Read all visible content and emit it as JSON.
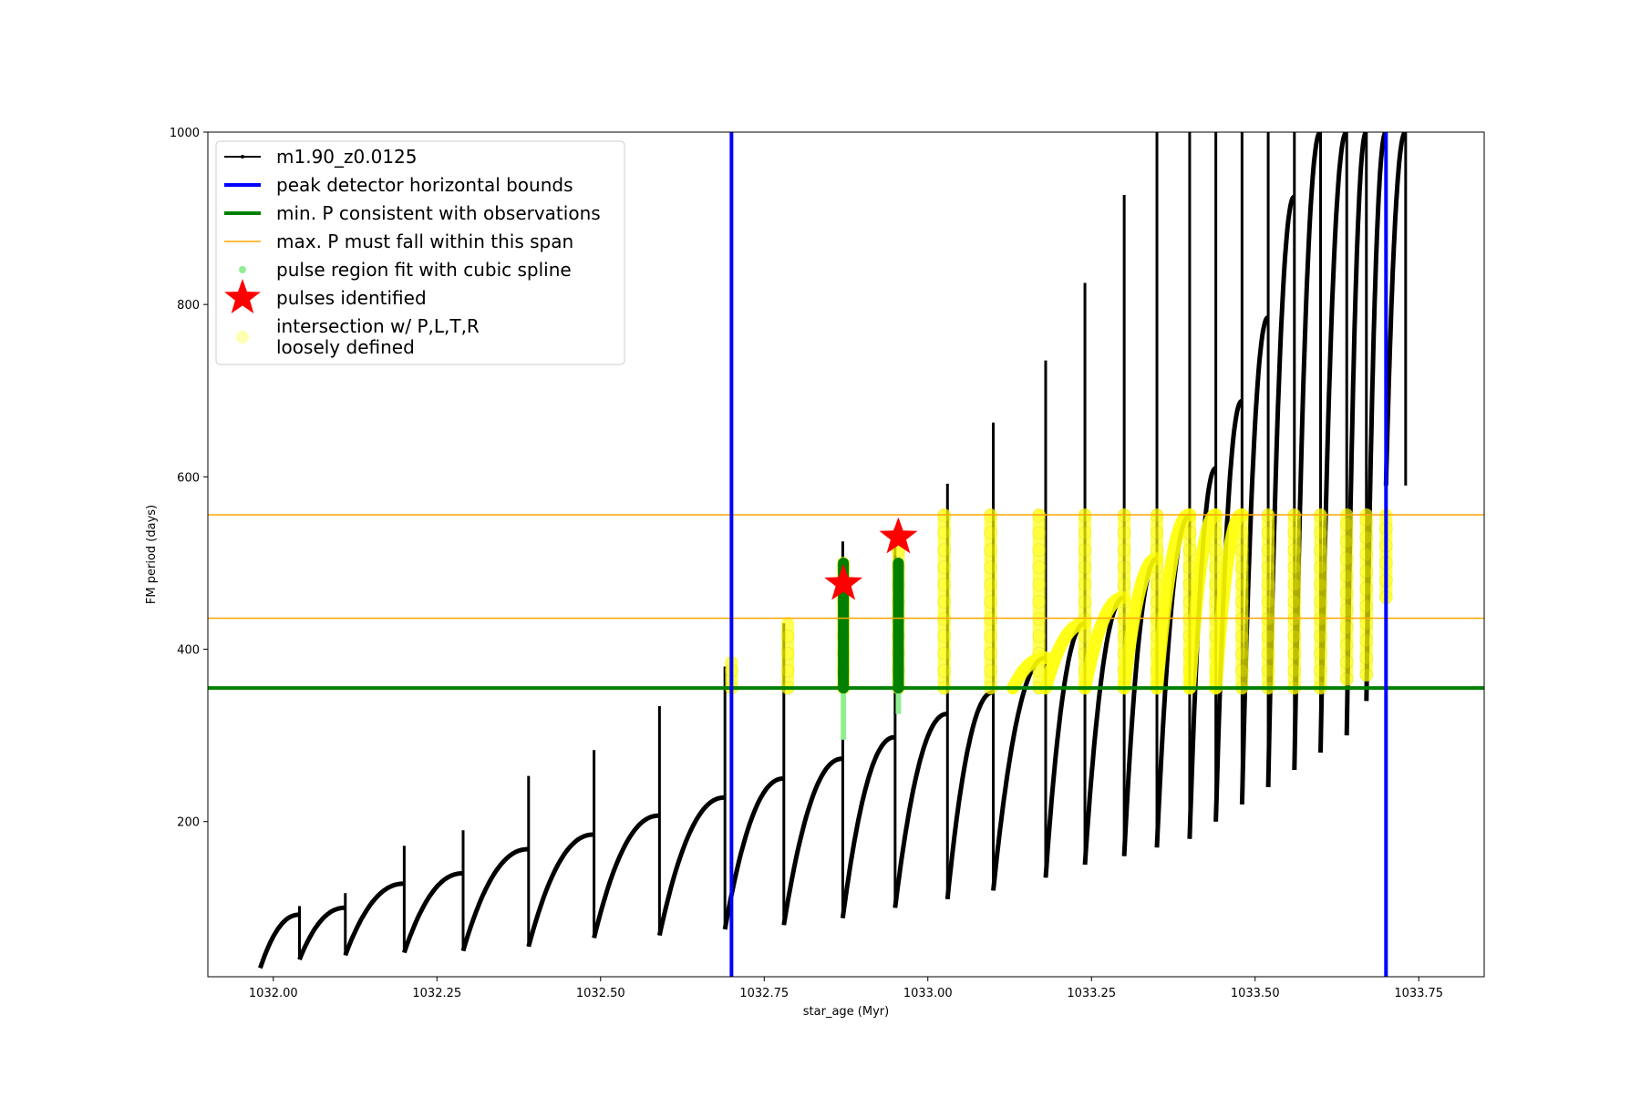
{
  "chart_data": {
    "type": "line",
    "title": "",
    "xlabel": "star_age (Myr)",
    "ylabel": "FM period (days)",
    "xlim": [
      1031.9,
      1033.85
    ],
    "ylim": [
      20,
      1000
    ],
    "xticks": [
      1032.0,
      1032.25,
      1032.5,
      1032.75,
      1033.0,
      1033.25,
      1033.5,
      1033.75
    ],
    "xtick_labels": [
      "1032.00",
      "1032.25",
      "1032.50",
      "1032.75",
      "1033.00",
      "1033.25",
      "1033.50",
      "1033.75"
    ],
    "yticks": [
      200,
      400,
      600,
      800,
      1000
    ],
    "ytick_labels": [
      "200",
      "400",
      "600",
      "800",
      "1000"
    ],
    "grid": false,
    "legend_position": "top-left",
    "colors": {
      "track": "#000000",
      "bounds": "#0000ff",
      "min_p": "#008000",
      "max_p": "#ffa500",
      "spline": "#90ee90",
      "spline_fit": "#008000",
      "pulse": "#ff0000",
      "intersection": "#ffff00"
    },
    "legend": [
      {
        "key": "track",
        "label": "m1.90_z0.0125"
      },
      {
        "key": "bounds",
        "label": "peak detector horizontal bounds"
      },
      {
        "key": "min_p",
        "label": "min. P consistent with observations"
      },
      {
        "key": "max_p",
        "label": "max. P must fall within this span"
      },
      {
        "key": "spline",
        "label": "pulse region fit with cubic spline"
      },
      {
        "key": "pulse",
        "label": "pulses identified"
      },
      {
        "key": "intersection",
        "label_lines": [
          "intersection w/ P,L,T,R",
          "loosely defined"
        ]
      }
    ],
    "series": [
      {
        "name": "m1.90_z0.0125",
        "pulses": [
          {
            "start": 1031.98,
            "end": 1032.04,
            "p_start": 30,
            "p_end": 92,
            "spike": 102
          },
          {
            "start": 1032.04,
            "end": 1032.11,
            "p_start": 40,
            "p_end": 100,
            "spike": 117
          },
          {
            "start": 1032.11,
            "end": 1032.2,
            "p_start": 45,
            "p_end": 128,
            "spike": 172
          },
          {
            "start": 1032.2,
            "end": 1032.29,
            "p_start": 48,
            "p_end": 140,
            "spike": 190
          },
          {
            "start": 1032.29,
            "end": 1032.39,
            "p_start": 50,
            "p_end": 168,
            "spike": 253
          },
          {
            "start": 1032.39,
            "end": 1032.49,
            "p_start": 55,
            "p_end": 185,
            "spike": 283
          },
          {
            "start": 1032.49,
            "end": 1032.59,
            "p_start": 65,
            "p_end": 207,
            "spike": 334
          },
          {
            "start": 1032.59,
            "end": 1032.69,
            "p_start": 68,
            "p_end": 228,
            "spike": 380
          },
          {
            "start": 1032.69,
            "end": 1032.78,
            "p_start": 75,
            "p_end": 250,
            "spike": 430
          },
          {
            "start": 1032.78,
            "end": 1032.87,
            "p_start": 80,
            "p_end": 273,
            "spike": 525
          },
          {
            "start": 1032.87,
            "end": 1032.95,
            "p_start": 88,
            "p_end": 298,
            "spike": 540
          },
          {
            "start": 1032.95,
            "end": 1033.03,
            "p_start": 100,
            "p_end": 325,
            "spike": 592
          },
          {
            "start": 1033.03,
            "end": 1033.1,
            "p_start": 110,
            "p_end": 350,
            "spike": 663
          },
          {
            "start": 1033.1,
            "end": 1033.18,
            "p_start": 120,
            "p_end": 390,
            "spike": 735
          },
          {
            "start": 1033.18,
            "end": 1033.24,
            "p_start": 135,
            "p_end": 430,
            "spike": 825
          },
          {
            "start": 1033.24,
            "end": 1033.3,
            "p_start": 150,
            "p_end": 460,
            "spike": 927
          },
          {
            "start": 1033.3,
            "end": 1033.35,
            "p_start": 160,
            "p_end": 505,
            "spike": 1000
          },
          {
            "start": 1033.35,
            "end": 1033.4,
            "p_start": 170,
            "p_end": 555,
            "spike": 1000
          },
          {
            "start": 1033.4,
            "end": 1033.44,
            "p_start": 180,
            "p_end": 610,
            "spike": 1000
          },
          {
            "start": 1033.44,
            "end": 1033.48,
            "p_start": 200,
            "p_end": 688,
            "spike": 1000
          },
          {
            "start": 1033.48,
            "end": 1033.52,
            "p_start": 220,
            "p_end": 785,
            "spike": 1000
          },
          {
            "start": 1033.52,
            "end": 1033.56,
            "p_start": 240,
            "p_end": 925,
            "spike": 1000
          },
          {
            "start": 1033.56,
            "end": 1033.6,
            "p_start": 260,
            "p_end": 1000,
            "spike": 1000
          },
          {
            "start": 1033.6,
            "end": 1033.64,
            "p_start": 280,
            "p_end": 1000,
            "spike": 1000
          },
          {
            "start": 1033.64,
            "end": 1033.67,
            "p_start": 300,
            "p_end": 1000,
            "spike": 1000
          },
          {
            "start": 1033.67,
            "end": 1033.7,
            "p_start": 340,
            "p_end": 1000,
            "spike": 1000
          },
          {
            "start": 1033.7,
            "end": 1033.73,
            "p_start": 590,
            "p_end": 1000,
            "spike": 1000
          }
        ]
      },
      {
        "name": "peak detector horizontal bounds",
        "x": [
          1032.7,
          1033.7
        ]
      },
      {
        "name": "min. P consistent with observations",
        "y": 355
      },
      {
        "name": "max. P must fall within this span",
        "y": [
          436,
          556
        ]
      },
      {
        "name": "pulse region fit with cubic spline",
        "segments": [
          {
            "x": 1032.871,
            "y_min": 295,
            "y_max": 500
          },
          {
            "x": 1032.955,
            "y_min": 325,
            "y_max": 500
          }
        ]
      },
      {
        "name": "pulses identified",
        "points": [
          {
            "x": 1032.871,
            "y": 476
          },
          {
            "x": 1032.955,
            "y": 530
          }
        ]
      },
      {
        "name": "intersection w/ P,L,T,R loosely defined",
        "dense_vertical": [
          {
            "x": 1032.7,
            "y_min": 355,
            "y_max": 385
          },
          {
            "x": 1032.786,
            "y_min": 355,
            "y_max": 430
          },
          {
            "x": 1032.871,
            "y_min": 355,
            "y_max": 500
          },
          {
            "x": 1032.955,
            "y_min": 355,
            "y_max": 530
          },
          {
            "x": 1033.025,
            "y_min": 355,
            "y_max": 556
          },
          {
            "x": 1033.096,
            "y_min": 355,
            "y_max": 556
          },
          {
            "x": 1033.17,
            "y_min": 355,
            "y_max": 556
          },
          {
            "x": 1033.24,
            "y_min": 355,
            "y_max": 556
          },
          {
            "x": 1033.3,
            "y_min": 355,
            "y_max": 556
          },
          {
            "x": 1033.35,
            "y_min": 355,
            "y_max": 556
          },
          {
            "x": 1033.4,
            "y_min": 355,
            "y_max": 556
          },
          {
            "x": 1033.44,
            "y_min": 355,
            "y_max": 556
          },
          {
            "x": 1033.48,
            "y_min": 355,
            "y_max": 556
          },
          {
            "x": 1033.52,
            "y_min": 355,
            "y_max": 556
          },
          {
            "x": 1033.56,
            "y_min": 355,
            "y_max": 556
          },
          {
            "x": 1033.6,
            "y_min": 355,
            "y_max": 556
          },
          {
            "x": 1033.64,
            "y_min": 365,
            "y_max": 556
          },
          {
            "x": 1033.67,
            "y_min": 370,
            "y_max": 556
          },
          {
            "x": 1033.7,
            "y_min": 460,
            "y_max": 556
          }
        ],
        "arcs": [
          {
            "start": 1033.13,
            "end": 1033.18,
            "y_end": 390
          },
          {
            "start": 1033.18,
            "end": 1033.24,
            "y_end": 430
          },
          {
            "start": 1033.24,
            "end": 1033.3,
            "y_end": 460
          },
          {
            "start": 1033.3,
            "end": 1033.35,
            "y_end": 505
          },
          {
            "start": 1033.35,
            "end": 1033.4,
            "y_end": 556
          },
          {
            "start": 1033.4,
            "end": 1033.44,
            "y_end": 556
          },
          {
            "start": 1033.44,
            "end": 1033.48,
            "y_end": 556
          }
        ]
      }
    ]
  }
}
